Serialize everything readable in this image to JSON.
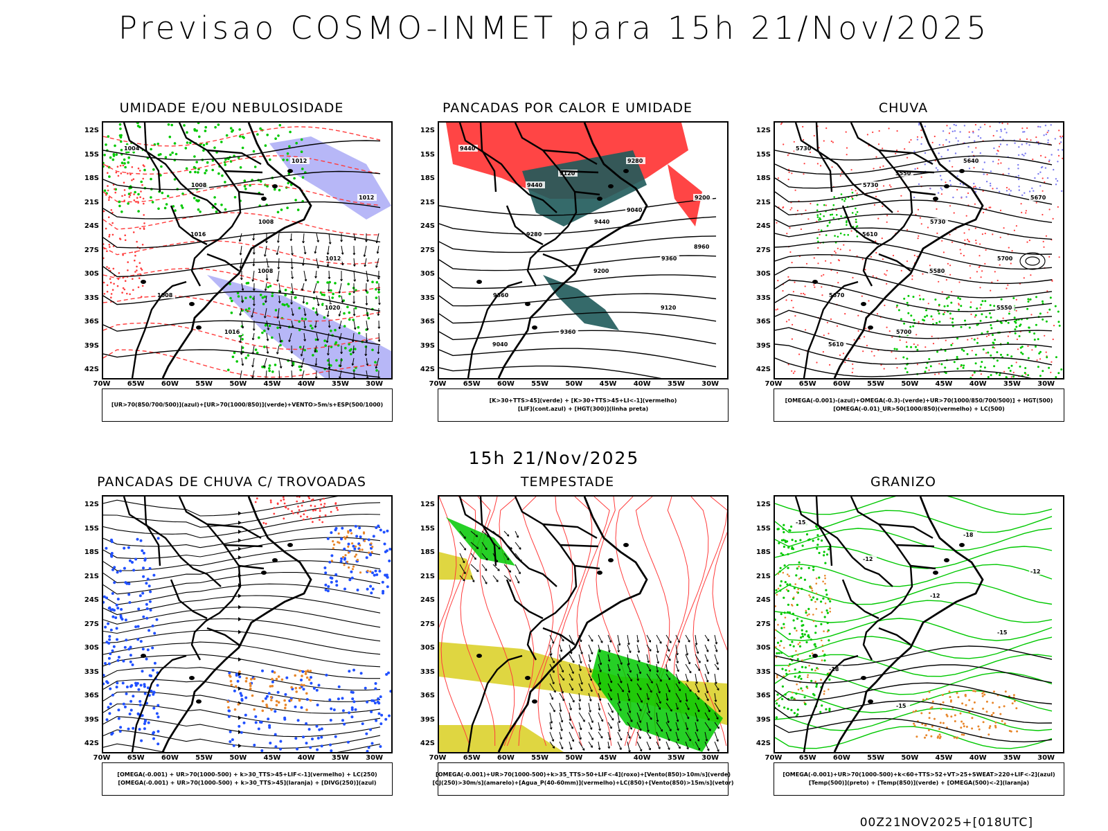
{
  "header": {
    "title": "Previsao COSMO-INMET  para 15h 21/Nov/2025"
  },
  "mid_time": "15h 21/Nov/2025",
  "footer": "00Z21NOV2025+[018UTC]",
  "axes": {
    "lat_labels": [
      "12S",
      "15S",
      "18S",
      "21S",
      "24S",
      "27S",
      "30S",
      "33S",
      "36S",
      "39S",
      "42S"
    ],
    "lon_labels": [
      "70W",
      "65W",
      "60W",
      "55W",
      "50W",
      "45W",
      "40W",
      "35W",
      "30W"
    ]
  },
  "colors": {
    "blue": "#7b7bf0",
    "green": "#00c800",
    "red": "#ff3b3b",
    "teal": "#1f5a5a",
    "yellow": "#dcd22c",
    "orange": "#e8862a",
    "dotblue": "#2050ff"
  },
  "panels": [
    {
      "title": "UMIDADE E/OU NEBULOSIDADE",
      "legend": [
        "[UR>70(850/700/500)](azul)+[UR>70(1000/850)](verde)+VENTO>5m/s+ESP(500/1000)"
      ],
      "labels": [
        "1004",
        "1008",
        "1008",
        "1012",
        "1008",
        "1016",
        "1012",
        "1012",
        "1016",
        "1008",
        "1020"
      ]
    },
    {
      "title": "PANCADAS POR CALOR E UMIDADE",
      "legend": [
        "[K>30+TTS>45](verde) + [K>30+TTS>45+LI<-1](vermelho)",
        "[LIF](cont.azul) + [HGT(300)](linha preta)"
      ],
      "labels": [
        "9440",
        "9440",
        "9440",
        "9360",
        "9360",
        "9360",
        "9280",
        "9200",
        "9280",
        "9200",
        "9120",
        "9040",
        "9120",
        "9040",
        "8960"
      ]
    },
    {
      "title": "CHUVA",
      "legend": [
        "[OMEGA(-0.001)-(azul)+OMEGA(-0.3)-(verde)+UR>70(1000/850/700/500)] + HGT(500)",
        "[OMEGA(-0.01)_UR>50(1000/850)(vermelho) + LC(500)"
      ],
      "labels": [
        "5730",
        "5730",
        "5730",
        "5700",
        "5670",
        "5700",
        "5640",
        "5670",
        "5610",
        "5580",
        "5550",
        "5610",
        "5550"
      ]
    },
    {
      "title": "PANCADAS DE CHUVA C/ TROVOADAS",
      "legend": [
        "[OMEGA(-0.001) + UR>70(1000-500) + k>30_TTS>45+LIF<-1](vermelho) + LC(250)",
        "[OMEGA(-0.001) + UR>70(1000-500) + k>30_TTS>45](laranja) + [DIVG(250)](azul)"
      ],
      "labels": []
    },
    {
      "title": "TEMPESTADE",
      "legend": [
        "[OMEGA(-0.001)+UR>70(1000-500)+k>35_TTS>50+LIF<-4](roxo)+[Vento(850)>10m/s](verde)",
        "[CJ(250)>30m/s](amarelo)+[Agua_P(40-60mm)](vermelho)+LC(850)+[Vento(850)>15m/s](vetor)"
      ],
      "labels": []
    },
    {
      "title": "GRANIZO",
      "legend": [
        "[OMEGA(-0.001)+UR>70(1000-500)+k<60+TTS>52+VT>25+SWEAT>220+LIF<-2](azul)",
        "[Temp(500)](preto) + [Temp(850)](verde) + [OMEGA(500)<-2](laranja)"
      ],
      "labels": [
        "-15",
        "-12",
        "-12",
        "-15",
        "-18",
        "-15",
        "-18",
        "-12"
      ]
    }
  ]
}
